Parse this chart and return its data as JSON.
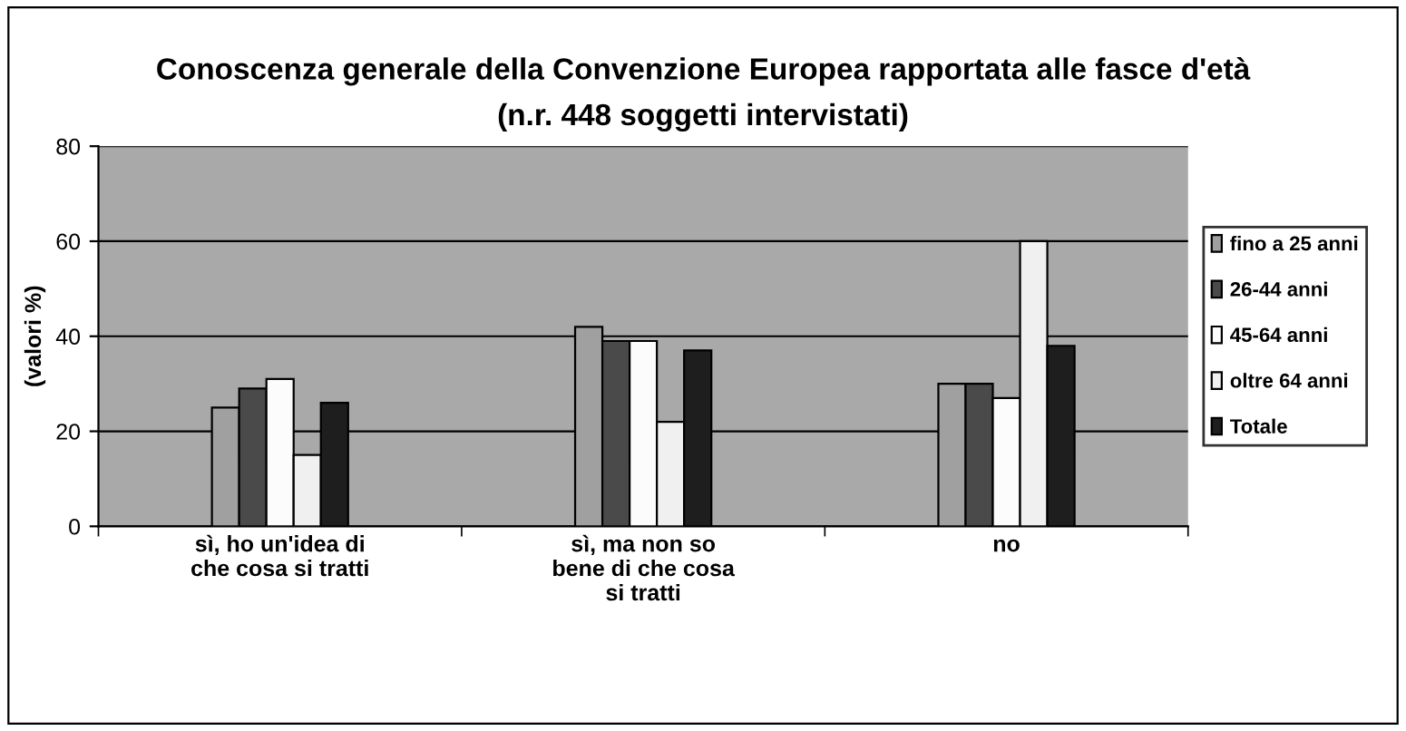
{
  "chart_data": {
    "type": "bar",
    "title": "Conoscenza generale della Convenzione Europea rapportata alle fasce d'età\n(n.r. 448 soggetti intervistati)",
    "ylabel": "(valori %)",
    "categories": [
      "sì, ho un'idea di\nche cosa si tratti",
      "sì, ma non so\nbene di che cosa\nsi tratti",
      "no"
    ],
    "series": [
      {
        "name": "fino a 25 anni",
        "color": "#a0a0a0",
        "values": [
          25,
          42,
          30
        ]
      },
      {
        "name": "26-44 anni",
        "color": "#4a4a4a",
        "values": [
          29,
          39,
          30
        ]
      },
      {
        "name": "45-64 anni",
        "color": "#fcfcfc",
        "values": [
          31,
          39,
          27
        ]
      },
      {
        "name": "oltre 64 anni",
        "color": "#f0f0f0",
        "values": [
          15,
          22,
          60
        ]
      },
      {
        "name": "Totale",
        "color": "#1e1e1e",
        "values": [
          26,
          37,
          38
        ]
      }
    ],
    "ylim": [
      0,
      80
    ],
    "yticks": [
      0,
      20,
      40,
      60,
      80
    ],
    "grid": "y",
    "legend": "right"
  }
}
